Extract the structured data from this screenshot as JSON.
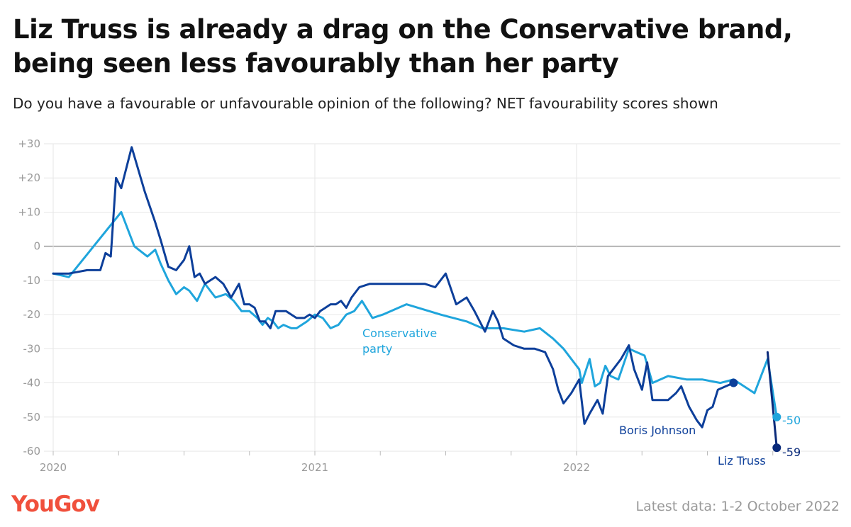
{
  "title": "Liz Truss is already a drag on the Conservative brand, being seen less favourably than her party",
  "subtitle": "Do you have a favourable or unfavourable opinion of the following? NET favourability scores shown",
  "brand": "YouGov",
  "footer_note": "Latest data: 1-2 October 2022",
  "colors": {
    "conservative": "#1fa5dc",
    "johnson": "#0d3f9a",
    "truss": "#0a2a7a",
    "grid": "#e6e6e6",
    "zero_line": "#9a9a9a",
    "brand": "#f0503c"
  },
  "chart_data": {
    "type": "line",
    "ylim": [
      -60,
      30
    ],
    "xlim": [
      2020.0,
      2022.95
    ],
    "y_ticks": [
      "+30",
      "+20",
      "+10",
      "0",
      "-10",
      "-20",
      "-30",
      "-40",
      "-50",
      "-60"
    ],
    "x_ticks": [
      "2020",
      "2021",
      "2022"
    ],
    "grid": true,
    "annotations": {
      "conservative_line1": "Conservative",
      "conservative_line2": "party",
      "johnson": "Boris Johnson",
      "truss": "Liz Truss"
    },
    "end_labels": {
      "conservative": "-50",
      "truss": "-59"
    },
    "series": [
      {
        "key": "conservative",
        "x": [
          2020.0,
          2020.06,
          2020.26,
          2020.31,
          2020.36,
          2020.39,
          2020.41,
          2020.44,
          2020.47,
          2020.5,
          2020.52,
          2020.55,
          2020.58,
          2020.62,
          2020.66,
          2020.69,
          2020.72,
          2020.75,
          2020.78,
          2020.8,
          2020.82,
          2020.84,
          2020.86,
          2020.88,
          2020.91,
          2020.93,
          2020.97,
          2021.0,
          2021.03,
          2021.06,
          2021.09,
          2021.12,
          2021.15,
          2021.18,
          2021.22,
          2021.26,
          2021.35,
          2021.48,
          2021.58,
          2021.64,
          2021.72,
          2021.8,
          2021.86,
          2021.91,
          2021.95,
          2021.98,
          2022.01,
          2022.02,
          2022.05,
          2022.07,
          2022.09,
          2022.11,
          2022.13,
          2022.16,
          2022.2,
          2022.23,
          2022.26,
          2022.29,
          2022.35,
          2022.42,
          2022.48,
          2022.55,
          2022.6,
          2022.64,
          2022.68,
          2022.73,
          2022.765
        ],
        "y": [
          -8,
          -9,
          10,
          0,
          -3,
          -1,
          -5,
          -10,
          -14,
          -12,
          -13,
          -16,
          -11,
          -15,
          -14,
          -16,
          -19,
          -19,
          -21,
          -23,
          -21,
          -22,
          -24,
          -23,
          -24,
          -24,
          -22,
          -20,
          -21,
          -24,
          -23,
          -20,
          -19,
          -16,
          -21,
          -20,
          -17,
          -20,
          -22,
          -24,
          -24,
          -25,
          -24,
          -27,
          -30,
          -33,
          -36,
          -40,
          -33,
          -41,
          -40,
          -35,
          -38,
          -39,
          -30,
          -31,
          -32,
          -40,
          -38,
          -39,
          -39,
          -40,
          -39,
          -41,
          -43,
          -33,
          -50
        ]
      },
      {
        "key": "johnson",
        "x": [
          2020.0,
          2020.06,
          2020.13,
          2020.18,
          2020.2,
          2020.22,
          2020.24,
          2020.26,
          2020.3,
          2020.35,
          2020.39,
          2020.41,
          2020.44,
          2020.47,
          2020.5,
          2020.52,
          2020.54,
          2020.56,
          2020.58,
          2020.6,
          2020.62,
          2020.65,
          2020.68,
          2020.71,
          2020.73,
          2020.75,
          2020.77,
          2020.79,
          2020.81,
          2020.83,
          2020.85,
          2020.87,
          2020.89,
          2020.91,
          2020.93,
          2020.96,
          2020.98,
          2021.0,
          2021.02,
          2021.04,
          2021.06,
          2021.08,
          2021.1,
          2021.12,
          2021.14,
          2021.17,
          2021.21,
          2021.3,
          2021.37,
          2021.42,
          2021.46,
          2021.5,
          2021.54,
          2021.58,
          2021.61,
          2021.65,
          2021.68,
          2021.7,
          2021.72,
          2021.76,
          2021.8,
          2021.84,
          2021.88,
          2021.91,
          2021.93,
          2021.95,
          2021.98,
          2022.01,
          2022.03,
          2022.05,
          2022.08,
          2022.1,
          2022.12,
          2022.14,
          2022.17,
          2022.2,
          2022.22,
          2022.25,
          2022.27,
          2022.29,
          2022.32,
          2022.35,
          2022.38,
          2022.4,
          2022.43,
          2022.46,
          2022.48,
          2022.5,
          2022.52,
          2022.54,
          2022.57,
          2022.6
        ],
        "y": [
          -8,
          -8,
          -7,
          -7,
          -2,
          -3,
          20,
          17,
          29,
          16,
          7,
          2,
          -6,
          -7,
          -4,
          0,
          -9,
          -8,
          -11,
          -10,
          -9,
          -11,
          -15,
          -11,
          -17,
          -17,
          -18,
          -22,
          -22,
          -24,
          -19,
          -19,
          -19,
          -20,
          -21,
          -21,
          -20,
          -21,
          -19,
          -18,
          -17,
          -17,
          -16,
          -18,
          -15,
          -12,
          -11,
          -11,
          -11,
          -11,
          -12,
          -8,
          -17,
          -15,
          -19,
          -25,
          -19,
          -22,
          -27,
          -29,
          -30,
          -30,
          -31,
          -36,
          -42,
          -46,
          -43,
          -39,
          -52,
          -49,
          -45,
          -49,
          -38,
          -36,
          -33,
          -29,
          -36,
          -42,
          -34,
          -45,
          -45,
          -45,
          -43,
          -41,
          -47,
          -51,
          -53,
          -48,
          -47,
          -42,
          -41,
          -40
        ]
      },
      {
        "key": "truss",
        "x": [
          2022.73,
          2022.765
        ],
        "y": [
          -31,
          -59
        ]
      }
    ]
  }
}
